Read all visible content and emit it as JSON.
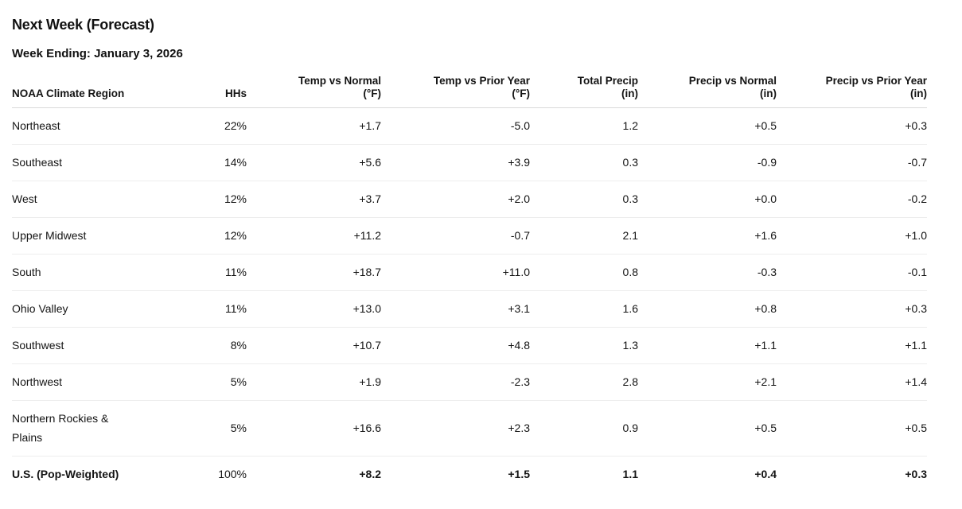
{
  "header": {
    "title": "Next Week (Forecast)",
    "subtitle": "Week Ending: January 3, 2026"
  },
  "colors": {
    "background": "#ffffff",
    "text": "#141414",
    "header_border": "#d9d9d9",
    "row_border": "#ededed"
  },
  "chart_data": {
    "type": "table",
    "title": "Next Week (Forecast)",
    "subtitle": "Week Ending: January 3, 2026",
    "columns": [
      {
        "label": "NOAA Climate Region",
        "unit": ""
      },
      {
        "label": "HHs",
        "unit": ""
      },
      {
        "label": "Temp vs Normal",
        "unit": "(°F)"
      },
      {
        "label": "Temp vs Prior Year",
        "unit": "(°F)"
      },
      {
        "label": "Total Precip",
        "unit": "(in)"
      },
      {
        "label": "Precip vs Normal",
        "unit": "(in)"
      },
      {
        "label": "Precip vs Prior Year",
        "unit": "(in)"
      }
    ],
    "rows": [
      {
        "region": "Northeast",
        "hhs": "22%",
        "temp_vs_normal": "+1.7",
        "temp_vs_prior": "-5.0",
        "total_precip": "1.2",
        "precip_vs_normal": "+0.5",
        "precip_vs_prior": "+0.3"
      },
      {
        "region": "Southeast",
        "hhs": "14%",
        "temp_vs_normal": "+5.6",
        "temp_vs_prior": "+3.9",
        "total_precip": "0.3",
        "precip_vs_normal": "-0.9",
        "precip_vs_prior": "-0.7"
      },
      {
        "region": "West",
        "hhs": "12%",
        "temp_vs_normal": "+3.7",
        "temp_vs_prior": "+2.0",
        "total_precip": "0.3",
        "precip_vs_normal": "+0.0",
        "precip_vs_prior": "-0.2"
      },
      {
        "region": "Upper Midwest",
        "hhs": "12%",
        "temp_vs_normal": "+11.2",
        "temp_vs_prior": "-0.7",
        "total_precip": "2.1",
        "precip_vs_normal": "+1.6",
        "precip_vs_prior": "+1.0"
      },
      {
        "region": "South",
        "hhs": "11%",
        "temp_vs_normal": "+18.7",
        "temp_vs_prior": "+11.0",
        "total_precip": "0.8",
        "precip_vs_normal": "-0.3",
        "precip_vs_prior": "-0.1"
      },
      {
        "region": "Ohio Valley",
        "hhs": "11%",
        "temp_vs_normal": "+13.0",
        "temp_vs_prior": "+3.1",
        "total_precip": "1.6",
        "precip_vs_normal": "+0.8",
        "precip_vs_prior": "+0.3"
      },
      {
        "region": "Southwest",
        "hhs": "8%",
        "temp_vs_normal": "+10.7",
        "temp_vs_prior": "+4.8",
        "total_precip": "1.3",
        "precip_vs_normal": "+1.1",
        "precip_vs_prior": "+1.1"
      },
      {
        "region": "Northwest",
        "hhs": "5%",
        "temp_vs_normal": "+1.9",
        "temp_vs_prior": "-2.3",
        "total_precip": "2.8",
        "precip_vs_normal": "+2.1",
        "precip_vs_prior": "+1.4"
      },
      {
        "region": "Northern Rockies & Plains",
        "hhs": "5%",
        "temp_vs_normal": "+16.6",
        "temp_vs_prior": "+2.3",
        "total_precip": "0.9",
        "precip_vs_normal": "+0.5",
        "precip_vs_prior": "+0.5"
      }
    ],
    "total": {
      "region": "U.S. (Pop-Weighted)",
      "hhs": "100%",
      "temp_vs_normal": "+8.2",
      "temp_vs_prior": "+1.5",
      "total_precip": "1.1",
      "precip_vs_normal": "+0.4",
      "precip_vs_prior": "+0.3"
    }
  }
}
